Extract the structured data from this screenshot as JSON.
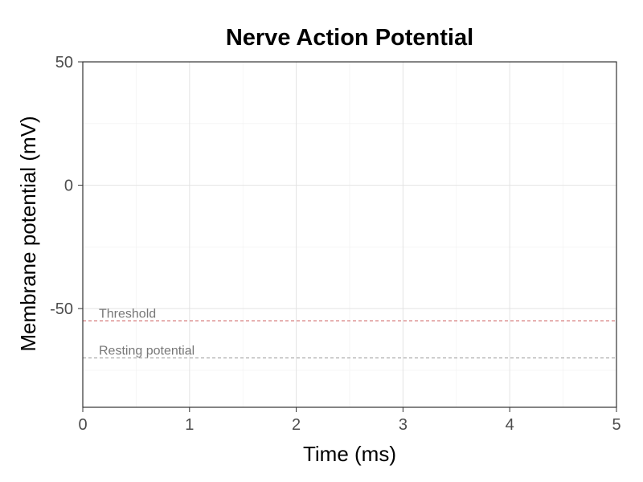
{
  "chart_data": {
    "type": "line",
    "title": "Nerve Action Potential",
    "xlabel": "Time (ms)",
    "ylabel": "Membrane potential (mV)",
    "xlim": [
      0,
      5
    ],
    "ylim": [
      -90,
      50
    ],
    "x_ticks": [
      0,
      1,
      2,
      3,
      4,
      5
    ],
    "y_ticks": [
      -50,
      0,
      50
    ],
    "grid": true,
    "series": [],
    "reference_lines": [
      {
        "label": "Threshold",
        "y": -55,
        "color": "#cd5c5c",
        "style": "dashed"
      },
      {
        "label": "Resting potential",
        "y": -70,
        "color": "#999999",
        "style": "dashed"
      }
    ]
  }
}
